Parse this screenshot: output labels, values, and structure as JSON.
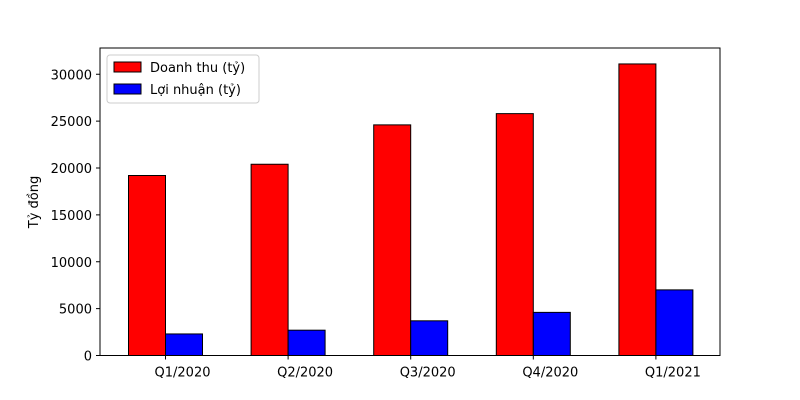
{
  "chart_data": {
    "type": "bar",
    "title": "",
    "xlabel": "",
    "ylabel": "Tỷ đồng",
    "categories": [
      "Q1/2020",
      "Q2/2020",
      "Q3/2020",
      "Q4/2020",
      "Q1/2021"
    ],
    "series": [
      {
        "name": "Doanh thu (tỷ)",
        "color": "#ff0000",
        "values": [
          19200,
          20400,
          24600,
          25800,
          31100
        ]
      },
      {
        "name": "Lợi nhuận (tỷ)",
        "color": "#0000ff",
        "values": [
          2300,
          2700,
          3700,
          4600,
          7000
        ]
      }
    ],
    "ylim": [
      0,
      32800
    ],
    "yticks": [
      0,
      5000,
      10000,
      15000,
      20000,
      25000,
      30000
    ],
    "grid": false,
    "legend_position": "top-left"
  }
}
